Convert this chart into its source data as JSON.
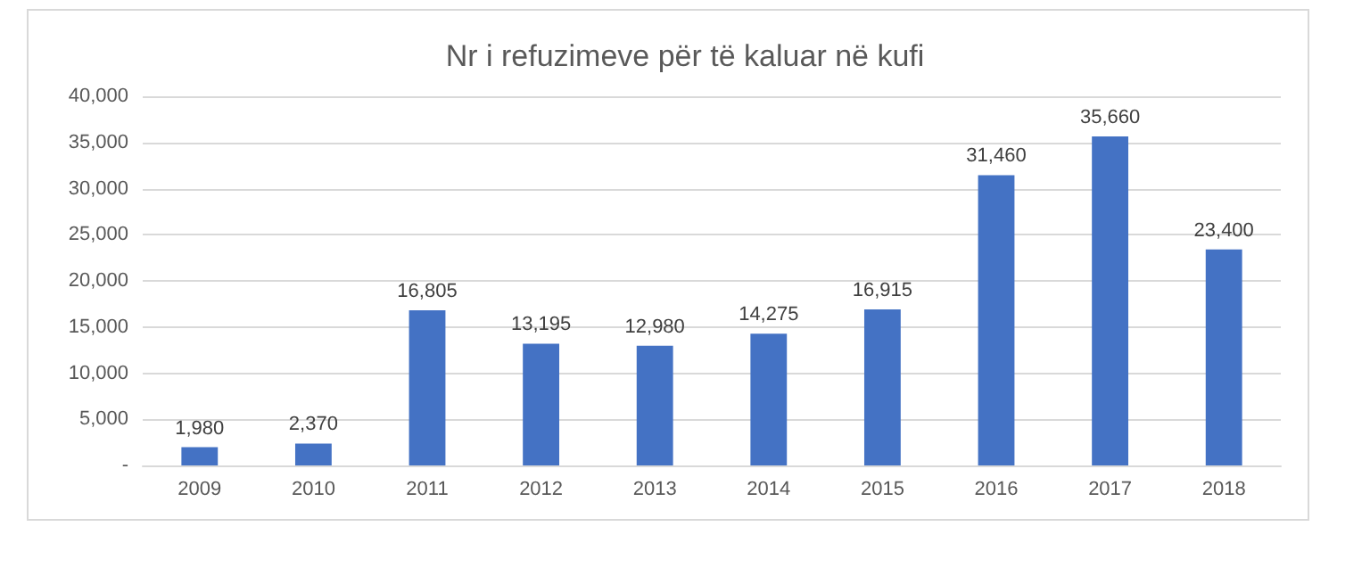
{
  "chart_data": {
    "type": "bar",
    "title": "Nr i refuzimeve për të kaluar në kufi",
    "categories": [
      "2009",
      "2010",
      "2011",
      "2012",
      "2013",
      "2014",
      "2015",
      "2016",
      "2017",
      "2018"
    ],
    "values": [
      1980,
      2370,
      16805,
      13195,
      12980,
      14275,
      16915,
      31460,
      35660,
      23400
    ],
    "color": "#4472c4",
    "value_labels": [
      "1,980",
      "2,370",
      "16,805",
      "13,195",
      "12,980",
      "14,275",
      "16,915",
      "31,460",
      "35,660",
      "23,400"
    ],
    "ylim": [
      0,
      40000
    ],
    "yticks": [
      {
        "value": 0,
        "label": "-"
      },
      {
        "value": 5000,
        "label": "5,000"
      },
      {
        "value": 10000,
        "label": "10,000"
      },
      {
        "value": 15000,
        "label": "15,000"
      },
      {
        "value": 20000,
        "label": "20,000"
      },
      {
        "value": 25000,
        "label": "25,000"
      },
      {
        "value": 30000,
        "label": "30,000"
      },
      {
        "value": 35000,
        "label": "35,000"
      },
      {
        "value": 40000,
        "label": "40,000"
      }
    ],
    "grid": "y"
  }
}
